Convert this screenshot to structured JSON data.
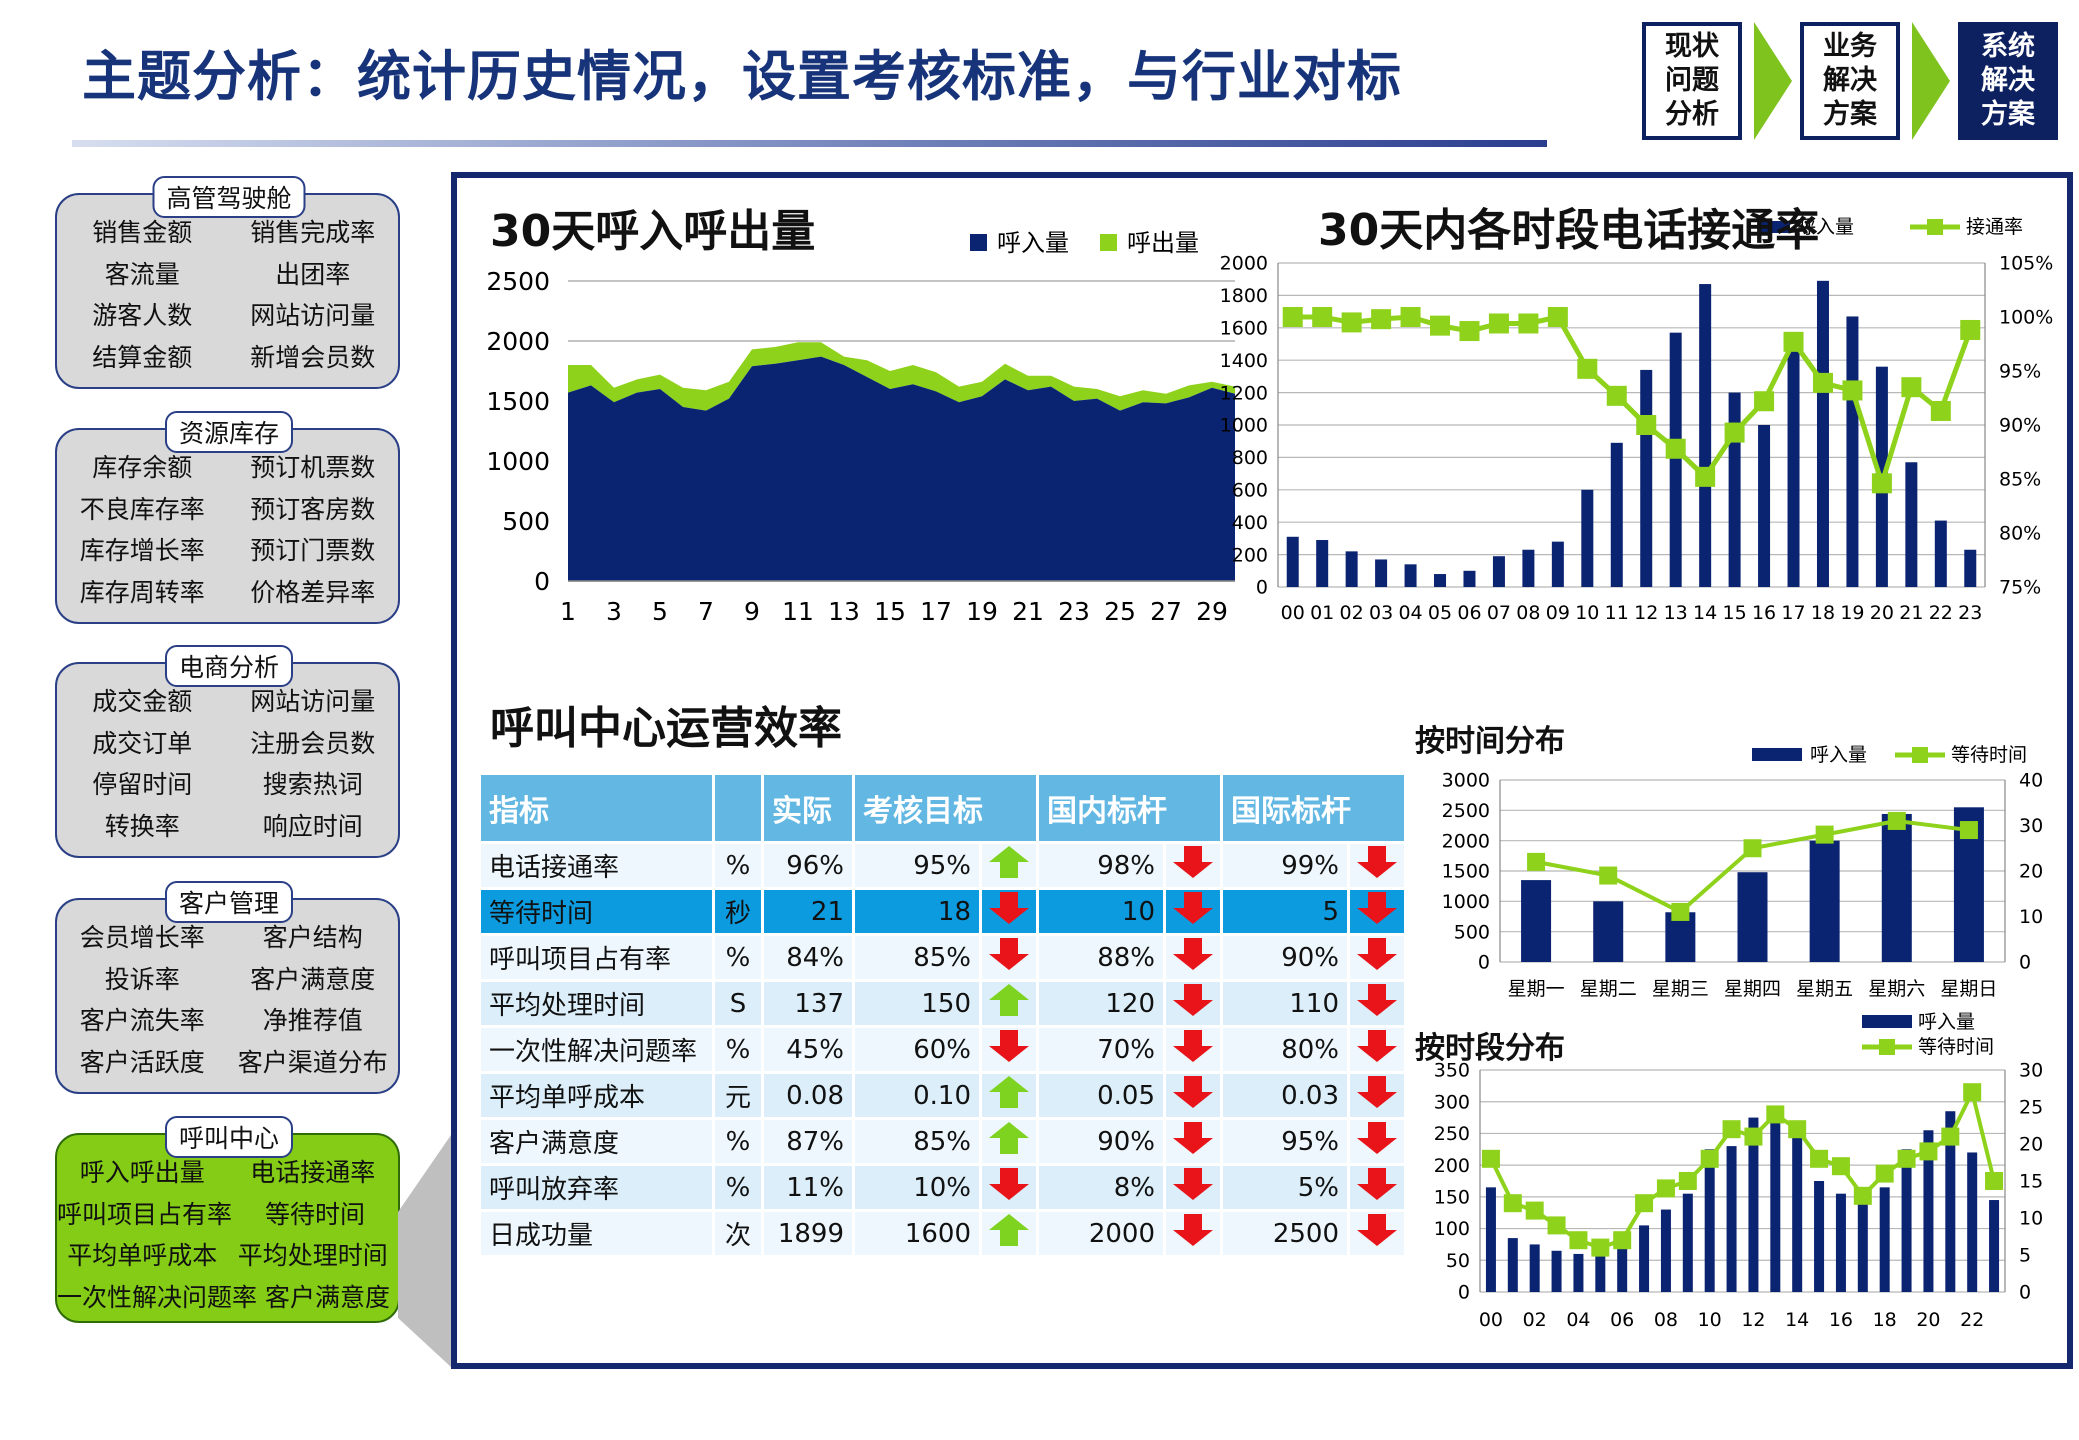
{
  "header": {
    "title": "主题分析：统计历史情况，设置考核标准，与行业对标",
    "steps": [
      {
        "label": "现状\n问题\n分析"
      },
      {
        "label": "业务\n解决\n方案"
      },
      {
        "label": "系统\n解决\n方案"
      }
    ]
  },
  "categories": [
    {
      "label": "高管驾驶舱",
      "rows": [
        [
          "销售金额",
          "销售完成率"
        ],
        [
          "客流量",
          "出团率"
        ],
        [
          "游客人数",
          "网站访问量"
        ],
        [
          "结算金额",
          "新增会员数"
        ]
      ]
    },
    {
      "label": "资源库存",
      "rows": [
        [
          "库存余额",
          "预订机票数"
        ],
        [
          "不良库存率",
          "预订客房数"
        ],
        [
          "库存增长率",
          "预订门票数"
        ],
        [
          "库存周转率",
          "价格差异率"
        ]
      ]
    },
    {
      "label": "电商分析",
      "rows": [
        [
          "成交金额",
          "网站访问量"
        ],
        [
          "成交订单",
          "注册会员数"
        ],
        [
          "停留时间",
          "搜索热词"
        ],
        [
          "转换率",
          "响应时间"
        ]
      ]
    },
    {
      "label": "客户管理",
      "rows": [
        [
          "会员增长率",
          "客户结构"
        ],
        [
          "投诉率",
          "客户满意度"
        ],
        [
          "客户流失率",
          "净推荐值"
        ],
        [
          "客户活跃度",
          "客户渠道分布"
        ]
      ]
    },
    {
      "label": "呼叫中心",
      "rows": [
        [
          "呼入呼出量",
          "电话接通率"
        ],
        [
          "呼叫项目占有率",
          "等待时间"
        ],
        [
          "平均单呼成本",
          "平均处理时间"
        ],
        [
          "一次性解决问题率",
          "客户满意度"
        ]
      ]
    }
  ],
  "colors": {
    "navy": "#0b2471",
    "green": "#8fd21b",
    "title": "#17347a"
  },
  "chart_data": [
    {
      "type": "area",
      "title": "30天呼入呼出量",
      "legend": [
        "呼入量",
        "呼出量"
      ],
      "x": [
        1,
        2,
        3,
        4,
        5,
        6,
        7,
        8,
        9,
        10,
        11,
        12,
        13,
        14,
        15,
        16,
        17,
        18,
        19,
        20,
        21,
        22,
        23,
        24,
        25,
        26,
        27,
        28,
        29,
        30
      ],
      "xticks": [
        "1",
        "3",
        "5",
        "7",
        "9",
        "11",
        "13",
        "15",
        "17",
        "19",
        "21",
        "23",
        "25",
        "27",
        "29"
      ],
      "yticks": [
        "0",
        "500",
        "1000",
        "1500",
        "2000",
        "2500"
      ],
      "ylim": [
        0,
        2500
      ],
      "series": [
        {
          "name": "呼入量",
          "values": [
            1570,
            1630,
            1490,
            1570,
            1600,
            1450,
            1420,
            1520,
            1790,
            1810,
            1840,
            1870,
            1800,
            1700,
            1600,
            1640,
            1580,
            1490,
            1540,
            1680,
            1590,
            1620,
            1500,
            1520,
            1420,
            1490,
            1480,
            1530,
            1610,
            1560
          ]
        },
        {
          "name": "呼出量",
          "values": [
            230,
            170,
            120,
            110,
            120,
            160,
            170,
            140,
            140,
            140,
            150,
            120,
            70,
            140,
            150,
            160,
            160,
            130,
            120,
            130,
            120,
            90,
            120,
            80,
            120,
            100,
            80,
            100,
            50,
            60
          ]
        }
      ]
    },
    {
      "type": "bar+line",
      "title": "30天内各时段电话接通率",
      "legend": [
        "呼入量",
        "接通率"
      ],
      "categories": [
        "00",
        "01",
        "02",
        "03",
        "04",
        "05",
        "06",
        "07",
        "08",
        "09",
        "10",
        "11",
        "12",
        "13",
        "14",
        "15",
        "16",
        "17",
        "18",
        "19",
        "20",
        "21",
        "22",
        "23"
      ],
      "yticks_left": [
        "0",
        "200",
        "400",
        "600",
        "800",
        "1000",
        "1200",
        "1400",
        "1600",
        "1800",
        "2000"
      ],
      "yticks_right": [
        "75%",
        "80%",
        "85%",
        "90%",
        "95%",
        "100%",
        "105%"
      ],
      "ylim_left": [
        0,
        2000
      ],
      "ylim_right": [
        75,
        105
      ],
      "series": [
        {
          "name": "呼入量",
          "values": [
            310,
            290,
            220,
            170,
            140,
            80,
            100,
            190,
            230,
            280,
            600,
            890,
            1340,
            1570,
            1870,
            1200,
            1000,
            1480,
            1890,
            1670,
            1360,
            770,
            410,
            230
          ]
        },
        {
          "name": "接通率",
          "values": [
            100,
            100,
            99.5,
            99.8,
            100,
            99.2,
            98.7,
            99.4,
            99.4,
            100,
            95.2,
            92.7,
            90,
            87.8,
            85.2,
            89.3,
            92.2,
            97.7,
            93.9,
            93.2,
            84.6,
            93.5,
            91.3,
            98.8
          ]
        }
      ]
    },
    {
      "type": "bar+line",
      "title": "按时间分布",
      "legend": [
        "呼入量",
        "等待时间"
      ],
      "categories": [
        "星期一",
        "星期二",
        "星期三",
        "星期四",
        "星期五",
        "星期六",
        "星期日"
      ],
      "yticks_left": [
        "0",
        "500",
        "1000",
        "1500",
        "2000",
        "2500",
        "3000"
      ],
      "yticks_right": [
        "0",
        "10",
        "20",
        "30",
        "40"
      ],
      "ylim_left": [
        0,
        3000
      ],
      "ylim_right": [
        0,
        40
      ],
      "series": [
        {
          "name": "呼入量",
          "values": [
            1350,
            1000,
            820,
            1480,
            2000,
            2440,
            2550
          ]
        },
        {
          "name": "等待时间",
          "values": [
            22,
            19,
            11,
            25,
            28,
            31,
            29
          ]
        }
      ]
    },
    {
      "type": "bar+line",
      "title": "按时段分布",
      "legend": [
        "呼入量",
        "等待时间"
      ],
      "categories": [
        "00",
        "01",
        "02",
        "03",
        "04",
        "05",
        "06",
        "07",
        "08",
        "09",
        "10",
        "11",
        "12",
        "13",
        "14",
        "15",
        "16",
        "17",
        "18",
        "19",
        "20",
        "21",
        "22",
        "23"
      ],
      "xticks": [
        "00",
        "02",
        "04",
        "06",
        "08",
        "10",
        "12",
        "14",
        "16",
        "18",
        "20",
        "22"
      ],
      "yticks_left": [
        "0",
        "50",
        "100",
        "150",
        "200",
        "250",
        "300",
        "350"
      ],
      "yticks_right": [
        "0",
        "5",
        "10",
        "15",
        "20",
        "25",
        "30"
      ],
      "ylim_left": [
        0,
        350
      ],
      "ylim_right": [
        0,
        30
      ],
      "series": [
        {
          "name": "呼入量",
          "values": [
            165,
            85,
            75,
            65,
            60,
            60,
            75,
            105,
            130,
            155,
            225,
            230,
            275,
            270,
            250,
            175,
            155,
            140,
            165,
            225,
            255,
            285,
            220,
            145
          ]
        },
        {
          "name": "等待时间",
          "values": [
            18,
            12,
            11,
            9,
            7,
            6,
            7,
            12,
            14,
            15,
            18,
            22,
            21,
            24,
            22,
            18,
            17,
            13,
            16,
            18,
            19,
            21,
            27,
            15
          ]
        }
      ]
    }
  ],
  "kpi": {
    "title": "呼叫中心运营效率",
    "headers": [
      "指标",
      "",
      "实际",
      "考核目标",
      "国内标杆",
      "国际标杆"
    ],
    "rows": [
      {
        "name": "电话接通率",
        "unit": "%",
        "actual": "96%",
        "target": "95%",
        "target_dir": "up",
        "domestic": "98%",
        "domestic_dir": "down",
        "intl": "99%",
        "intl_dir": "down"
      },
      {
        "name": "等待时间",
        "unit": "秒",
        "actual": "21",
        "target": "18",
        "target_dir": "down",
        "domestic": "10",
        "domestic_dir": "down",
        "intl": "5",
        "intl_dir": "down"
      },
      {
        "name": "呼叫项目占有率",
        "unit": "%",
        "actual": "84%",
        "target": "85%",
        "target_dir": "down",
        "domestic": "88%",
        "domestic_dir": "down",
        "intl": "90%",
        "intl_dir": "down"
      },
      {
        "name": "平均处理时间",
        "unit": "S",
        "actual": "137",
        "target": "150",
        "target_dir": "up",
        "domestic": "120",
        "domestic_dir": "down",
        "intl": "110",
        "intl_dir": "down"
      },
      {
        "name": "一次性解决问题率",
        "unit": "%",
        "actual": "45%",
        "target": "60%",
        "target_dir": "down",
        "domestic": "70%",
        "domestic_dir": "down",
        "intl": "80%",
        "intl_dir": "down"
      },
      {
        "name": "平均单呼成本",
        "unit": "元",
        "actual": "0.08",
        "target": "0.10",
        "target_dir": "up",
        "domestic": "0.05",
        "domestic_dir": "down",
        "intl": "0.03",
        "intl_dir": "down"
      },
      {
        "name": "客户满意度",
        "unit": "%",
        "actual": "87%",
        "target": "85%",
        "target_dir": "up",
        "domestic": "90%",
        "domestic_dir": "down",
        "intl": "95%",
        "intl_dir": "down"
      },
      {
        "name": "呼叫放弃率",
        "unit": "%",
        "actual": "11%",
        "target": "10%",
        "target_dir": "down",
        "domestic": "8%",
        "domestic_dir": "down",
        "intl": "5%",
        "intl_dir": "down"
      },
      {
        "name": "日成功量",
        "unit": "次",
        "actual": "1899",
        "target": "1600",
        "target_dir": "up",
        "domestic": "2000",
        "domestic_dir": "down",
        "intl": "2500",
        "intl_dir": "down"
      }
    ]
  }
}
